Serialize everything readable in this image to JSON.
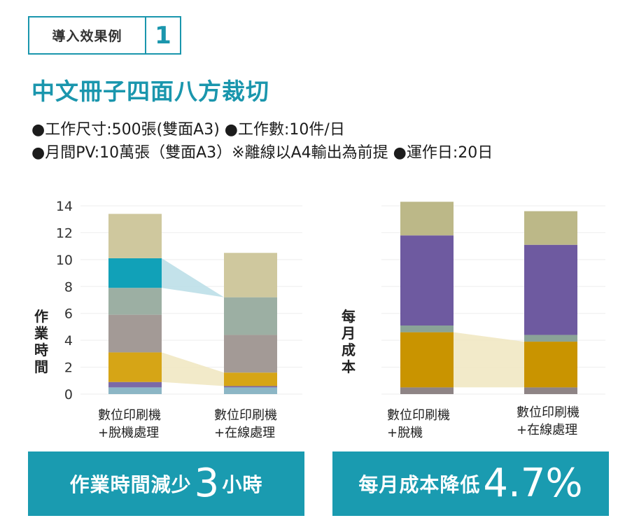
{
  "header": {
    "badge_label": "導入效果例",
    "badge_number": "1",
    "title": "中文冊子四面八方裁切",
    "spec_line1": "●工作尺寸:500張(雙面A3) ●工作數:10件/日",
    "spec_line2": "●月間PV:10萬張（雙面A3）※離線以A4輸出為前提 ●運作日:20日"
  },
  "colors": {
    "accent": "#1a96ad",
    "segments": [
      "#8cb6c5",
      "#7b6aa6",
      "#d6a516",
      "#a39a96",
      "#9cafa3",
      "#11a1b8",
      "#cfc89e"
    ],
    "cost_segments": [
      "#8e8485",
      "#c99400",
      "#8aa397",
      "#6e5aa0",
      "#bcb888"
    ],
    "connector_blue": "#b9dde6",
    "connector_yellow": "#f0e6bf",
    "gridline": "#eeeeee"
  },
  "chart_data": [
    {
      "type": "bar",
      "stacked": true,
      "ylabel": "作業時間",
      "ylim": [
        0,
        14
      ],
      "yticks": [
        "0",
        "2",
        "4",
        "6",
        "8",
        "10",
        "12",
        "14"
      ],
      "categories": [
        {
          "line1": "數位印刷機",
          "line2": "+脫機處理"
        },
        {
          "line1": "數位印刷機",
          "line2": "+在線處理"
        }
      ],
      "series": [
        {
          "name": "seg1",
          "values": [
            0.5,
            0.5
          ]
        },
        {
          "name": "seg2",
          "values": [
            0.4,
            0.1
          ]
        },
        {
          "name": "seg3",
          "values": [
            2.2,
            1.0
          ]
        },
        {
          "name": "seg4",
          "values": [
            2.8,
            2.8
          ]
        },
        {
          "name": "seg5",
          "values": [
            2.0,
            2.8
          ]
        },
        {
          "name": "seg6",
          "values": [
            2.2,
            0
          ]
        },
        {
          "name": "seg7",
          "values": [
            3.3,
            3.3
          ]
        }
      ],
      "highlights": [
        {
          "from_range": [
            7.9,
            10.1
          ],
          "to_range": [
            7.2,
            7.2
          ],
          "color": "connector_blue"
        },
        {
          "from_range": [
            0.9,
            3.1
          ],
          "to_range": [
            0.6,
            1.6
          ],
          "color": "connector_yellow"
        }
      ]
    },
    {
      "type": "bar",
      "stacked": true,
      "ylabel": "每月成本",
      "ylim": [
        0,
        14
      ],
      "categories": [
        {
          "line1": "數位印刷機",
          "line2": "+脫機"
        },
        {
          "line1": "數位印刷機",
          "line2": "+在線處理"
        }
      ],
      "series": [
        {
          "name": "seg1",
          "values": [
            0.5,
            0.5
          ]
        },
        {
          "name": "seg2",
          "values": [
            4.1,
            3.4
          ]
        },
        {
          "name": "seg3",
          "values": [
            0.5,
            0.5
          ]
        },
        {
          "name": "seg4",
          "values": [
            6.7,
            6.7
          ]
        },
        {
          "name": "seg5",
          "values": [
            2.5,
            2.5
          ]
        }
      ],
      "highlights": [
        {
          "from_range": [
            0.5,
            4.6
          ],
          "to_range": [
            0.5,
            3.9
          ],
          "color": "connector_yellow"
        }
      ]
    }
  ],
  "banners": {
    "left_text": "作業時間減少",
    "left_number": "3",
    "left_unit": "小時",
    "right_text": "每月成本降低",
    "right_number": "4.7%"
  }
}
